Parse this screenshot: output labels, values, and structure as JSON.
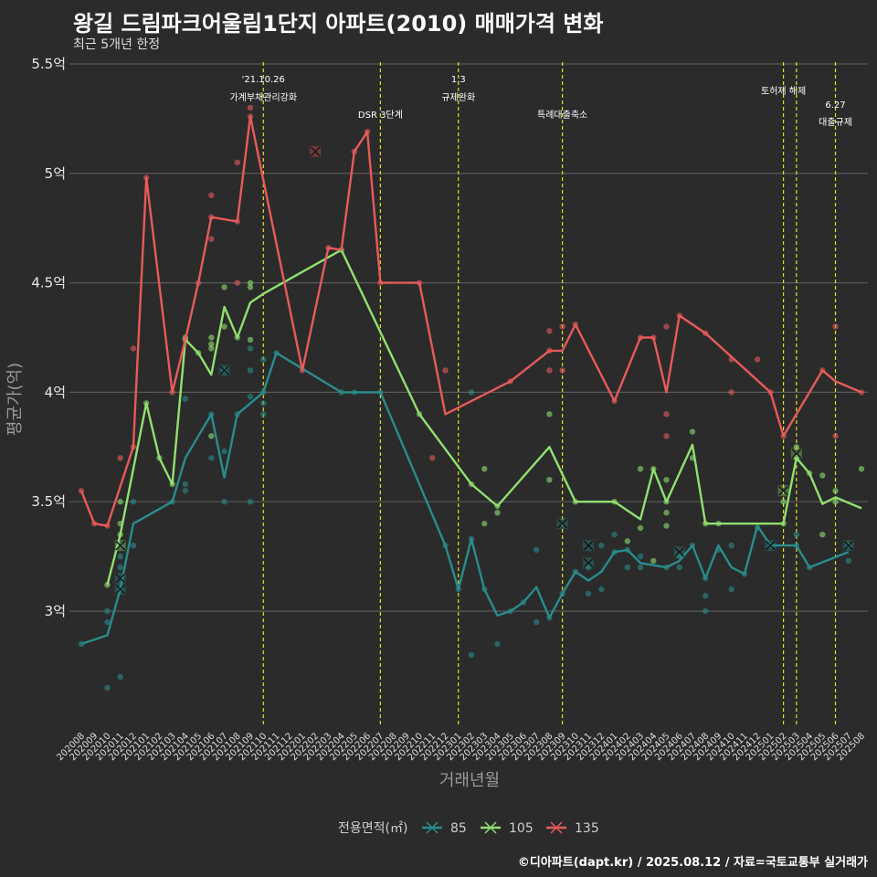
{
  "chart_data": {
    "type": "line",
    "title": "왕길 드림파크어울림1단지 아파트(2010) 매매가격 변화",
    "subtitle": "최근 5개년 한정",
    "xlabel": "거래년월",
    "ylabel": "평균가(억)",
    "legend_title": "전용면적(㎡)",
    "caption": "©디아파트(dapt.kr) / 2025.08.12 / 자료=국토교통부 실거래가",
    "ylim": [
      2.47,
      5.55
    ],
    "ytick_values": [
      3,
      3.5,
      4,
      4.5,
      5,
      5.5
    ],
    "ytick_labels": [
      "3억",
      "3.5억",
      "4억",
      "4.5억",
      "5억",
      "5.5억"
    ],
    "grid": true,
    "legend_position": "bottom",
    "x_months": [
      "202008",
      "202009",
      "202010",
      "202011",
      "202012",
      "202101",
      "202102",
      "202103",
      "202104",
      "202105",
      "202106",
      "202107",
      "202108",
      "202109",
      "202110",
      "202111",
      "202112",
      "202201",
      "202202",
      "202203",
      "202204",
      "202205",
      "202206",
      "202207",
      "202208",
      "202209",
      "202210",
      "202211",
      "202212",
      "202301",
      "202302",
      "202303",
      "202304",
      "202305",
      "202306",
      "202307",
      "202308",
      "202309",
      "202310",
      "202311",
      "202312",
      "202401",
      "202402",
      "202403",
      "202404",
      "202405",
      "202406",
      "202407",
      "202408",
      "202409",
      "202410",
      "202411",
      "202412",
      "202501",
      "202502",
      "202503",
      "202504",
      "202505",
      "202506",
      "202507",
      "202508"
    ],
    "events": [
      {
        "x": 14.0,
        "label1": "'21.10.26",
        "label2": "가계부채관리강화",
        "tier": "high"
      },
      {
        "x": 23.0,
        "label1": "",
        "label2": "DSR 3단계",
        "tier": "mid"
      },
      {
        "x": 29.0,
        "label1": "1.3",
        "label2": "규제완화",
        "tier": "high"
      },
      {
        "x": 37.0,
        "label1": "",
        "label2": "특례대출축소",
        "tier": "mid"
      },
      {
        "x": 54.0,
        "label1": "",
        "label2": "토허제 해제",
        "tier": "top"
      },
      {
        "x": 55.0,
        "label1": "",
        "label2": "",
        "tier": "none"
      },
      {
        "x": 58.0,
        "label1": "6.27",
        "label2": "대출규제",
        "tier": "low"
      }
    ],
    "series": [
      {
        "name": "85",
        "color": "#2a8c8c",
        "values": [
          [
            0,
            2.85
          ],
          [
            2,
            2.89
          ],
          [
            3,
            3.1
          ],
          [
            4,
            3.4
          ],
          [
            7,
            3.5
          ],
          [
            8,
            3.7
          ],
          [
            10,
            3.9
          ],
          [
            11,
            3.61
          ],
          [
            12,
            3.9
          ],
          [
            14,
            4.0
          ],
          [
            15,
            4.18
          ],
          [
            20,
            4.0
          ],
          [
            21,
            4.0
          ],
          [
            23,
            4.0
          ],
          [
            28,
            3.3
          ],
          [
            29,
            3.1
          ],
          [
            30,
            3.33
          ],
          [
            31,
            3.1
          ],
          [
            32,
            2.98
          ],
          [
            33,
            3.0
          ],
          [
            34,
            3.04
          ],
          [
            35,
            3.11
          ],
          [
            36,
            2.97
          ],
          [
            37,
            3.08
          ],
          [
            38,
            3.18
          ],
          [
            39,
            3.14
          ],
          [
            40,
            3.18
          ],
          [
            41,
            3.27
          ],
          [
            42,
            3.28
          ],
          [
            43,
            3.22
          ],
          [
            45,
            3.2
          ],
          [
            46,
            3.23
          ],
          [
            47,
            3.3
          ],
          [
            48,
            3.15
          ],
          [
            49,
            3.3
          ],
          [
            50,
            3.2
          ],
          [
            51,
            3.17
          ],
          [
            52,
            3.39
          ],
          [
            53,
            3.3
          ],
          [
            55,
            3.3
          ],
          [
            56,
            3.2
          ],
          [
            59,
            3.27
          ]
        ],
        "points": [
          [
            0,
            2.85
          ],
          [
            2,
            2.65
          ],
          [
            2,
            2.95
          ],
          [
            2,
            3.0
          ],
          [
            3,
            3.1
          ],
          [
            3,
            3.2
          ],
          [
            3,
            3.25
          ],
          [
            3,
            3.3
          ],
          [
            3,
            2.7
          ],
          [
            4,
            3.5
          ],
          [
            4,
            3.3
          ],
          [
            7,
            3.5
          ],
          [
            8,
            3.97
          ],
          [
            8,
            3.55
          ],
          [
            8,
            3.58
          ],
          [
            10,
            3.7
          ],
          [
            10,
            3.9
          ],
          [
            11,
            3.73
          ],
          [
            11,
            3.5
          ],
          [
            11,
            4.1
          ],
          [
            12,
            3.9
          ],
          [
            13,
            3.98
          ],
          [
            13,
            4.1
          ],
          [
            13,
            4.2
          ],
          [
            13,
            3.5
          ],
          [
            14,
            4.0
          ],
          [
            14,
            3.95
          ],
          [
            14,
            3.9
          ],
          [
            14,
            4.15
          ],
          [
            15,
            4.18
          ],
          [
            20,
            4.0
          ],
          [
            21,
            4.0
          ],
          [
            23,
            4.0
          ],
          [
            28,
            3.3
          ],
          [
            29,
            3.1
          ],
          [
            30,
            3.33
          ],
          [
            30,
            4.0
          ],
          [
            30,
            2.8
          ],
          [
            31,
            3.1
          ],
          [
            32,
            2.85
          ],
          [
            33,
            3.0
          ],
          [
            34,
            3.04
          ],
          [
            35,
            3.28
          ],
          [
            35,
            2.95
          ],
          [
            36,
            2.97
          ],
          [
            37,
            3.08
          ],
          [
            38,
            3.18
          ],
          [
            39,
            3.2
          ],
          [
            39,
            3.08
          ],
          [
            40,
            3.3
          ],
          [
            40,
            3.1
          ],
          [
            41,
            3.35
          ],
          [
            41,
            3.27
          ],
          [
            42,
            3.28
          ],
          [
            42,
            3.2
          ],
          [
            43,
            3.2
          ],
          [
            43,
            3.25
          ],
          [
            45,
            3.2
          ],
          [
            46,
            3.25
          ],
          [
            46,
            3.2
          ],
          [
            47,
            3.3
          ],
          [
            48,
            3.07
          ],
          [
            48,
            3.0
          ],
          [
            48,
            3.15
          ],
          [
            49,
            3.28
          ],
          [
            50,
            3.1
          ],
          [
            50,
            3.3
          ],
          [
            51,
            3.17
          ],
          [
            52,
            3.38
          ],
          [
            53,
            3.3
          ],
          [
            55,
            3.3
          ],
          [
            55,
            3.35
          ],
          [
            56,
            3.2
          ],
          [
            59,
            3.23
          ],
          [
            59,
            3.3
          ]
        ],
        "cancels": [
          [
            3,
            3.1
          ],
          [
            3,
            3.15
          ],
          [
            11,
            4.1
          ],
          [
            37,
            3.4
          ],
          [
            39,
            3.22
          ],
          [
            39,
            3.3
          ],
          [
            46,
            3.27
          ],
          [
            53,
            3.3
          ],
          [
            59,
            3.3
          ]
        ]
      },
      {
        "name": "105",
        "color": "#90e070",
        "values": [
          [
            2,
            3.12
          ],
          [
            3,
            3.35
          ],
          [
            5,
            3.95
          ],
          [
            6,
            3.7
          ],
          [
            7,
            3.58
          ],
          [
            8,
            4.24
          ],
          [
            9,
            4.18
          ],
          [
            10,
            4.08
          ],
          [
            11,
            4.39
          ],
          [
            12,
            4.25
          ],
          [
            13,
            4.41
          ],
          [
            14,
            4.45
          ],
          [
            20,
            4.65
          ],
          [
            26,
            3.9
          ],
          [
            30,
            3.58
          ],
          [
            32,
            3.48
          ],
          [
            36,
            3.75
          ],
          [
            38,
            3.5
          ],
          [
            41,
            3.5
          ],
          [
            43,
            3.42
          ],
          [
            44,
            3.65
          ],
          [
            45,
            3.5
          ],
          [
            47,
            3.76
          ],
          [
            48,
            3.4
          ],
          [
            54,
            3.4
          ],
          [
            55,
            3.7
          ],
          [
            56,
            3.63
          ],
          [
            57,
            3.49
          ],
          [
            58,
            3.52
          ],
          [
            60,
            3.47
          ]
        ],
        "points": [
          [
            2,
            3.12
          ],
          [
            3,
            3.35
          ],
          [
            3,
            3.5
          ],
          [
            3,
            3.4
          ],
          [
            5,
            3.95
          ],
          [
            6,
            3.7
          ],
          [
            7,
            3.58
          ],
          [
            8,
            4.24
          ],
          [
            8,
            4.25
          ],
          [
            9,
            4.18
          ],
          [
            10,
            4.2
          ],
          [
            10,
            4.22
          ],
          [
            10,
            4.25
          ],
          [
            10,
            3.8
          ],
          [
            11,
            4.48
          ],
          [
            11,
            4.3
          ],
          [
            12,
            4.25
          ],
          [
            13,
            4.5
          ],
          [
            13,
            4.48
          ],
          [
            13,
            4.24
          ],
          [
            20,
            4.65
          ],
          [
            26,
            3.9
          ],
          [
            30,
            3.58
          ],
          [
            31,
            3.65
          ],
          [
            31,
            3.4
          ],
          [
            32,
            3.48
          ],
          [
            32,
            3.45
          ],
          [
            36,
            3.6
          ],
          [
            36,
            3.9
          ],
          [
            38,
            3.5
          ],
          [
            41,
            3.5
          ],
          [
            42,
            3.32
          ],
          [
            43,
            3.38
          ],
          [
            43,
            3.65
          ],
          [
            44,
            3.65
          ],
          [
            44,
            3.23
          ],
          [
            45,
            3.5
          ],
          [
            45,
            3.6
          ],
          [
            45,
            3.45
          ],
          [
            45,
            3.39
          ],
          [
            47,
            3.82
          ],
          [
            47,
            3.7
          ],
          [
            48,
            3.4
          ],
          [
            49,
            3.4
          ],
          [
            54,
            3.4
          ],
          [
            54,
            3.5
          ],
          [
            55,
            3.75
          ],
          [
            55,
            3.7
          ],
          [
            56,
            3.63
          ],
          [
            57,
            3.35
          ],
          [
            57,
            3.62
          ],
          [
            58,
            3.55
          ],
          [
            58,
            3.5
          ],
          [
            60,
            3.65
          ]
        ],
        "cancels": [
          [
            3,
            3.3
          ],
          [
            54,
            3.55
          ],
          [
            55,
            3.72
          ]
        ]
      },
      {
        "name": "135",
        "color": "#e85a5a",
        "values": [
          [
            0,
            3.55
          ],
          [
            1,
            3.4
          ],
          [
            2,
            3.39
          ],
          [
            4,
            3.75
          ],
          [
            5,
            4.98
          ],
          [
            7,
            4.0
          ],
          [
            8,
            4.24
          ],
          [
            9,
            4.5
          ],
          [
            10,
            4.8
          ],
          [
            12,
            4.78
          ],
          [
            13,
            5.26
          ],
          [
            17,
            4.1
          ],
          [
            19,
            4.66
          ],
          [
            20,
            4.65
          ],
          [
            21,
            5.1
          ],
          [
            22,
            5.19
          ],
          [
            23,
            4.5
          ],
          [
            26,
            4.5
          ],
          [
            28,
            3.9
          ],
          [
            33,
            4.05
          ],
          [
            36,
            4.19
          ],
          [
            37,
            4.19
          ],
          [
            38,
            4.31
          ],
          [
            41,
            3.96
          ],
          [
            43,
            4.25
          ],
          [
            44,
            4.25
          ],
          [
            45,
            4.0
          ],
          [
            46,
            4.35
          ],
          [
            48,
            4.27
          ],
          [
            53,
            4.0
          ],
          [
            54,
            3.8
          ],
          [
            57,
            4.1
          ],
          [
            58,
            4.05
          ],
          [
            60,
            4.0
          ]
        ],
        "points": [
          [
            0,
            3.55
          ],
          [
            1,
            3.4
          ],
          [
            2,
            3.39
          ],
          [
            3,
            3.7
          ],
          [
            4,
            4.2
          ],
          [
            4,
            3.75
          ],
          [
            5,
            4.98
          ],
          [
            7,
            4.0
          ],
          [
            8,
            4.24
          ],
          [
            9,
            4.5
          ],
          [
            10,
            4.8
          ],
          [
            10,
            4.9
          ],
          [
            10,
            4.7
          ],
          [
            12,
            4.78
          ],
          [
            12,
            5.05
          ],
          [
            12,
            4.5
          ],
          [
            13,
            5.3
          ],
          [
            13,
            5.26
          ],
          [
            17,
            4.1
          ],
          [
            19,
            4.66
          ],
          [
            21,
            5.1
          ],
          [
            22,
            5.19
          ],
          [
            23,
            4.5
          ],
          [
            26,
            4.5
          ],
          [
            27,
            3.7
          ],
          [
            28,
            4.1
          ],
          [
            33,
            4.05
          ],
          [
            36,
            4.28
          ],
          [
            36,
            4.19
          ],
          [
            36,
            4.1
          ],
          [
            37,
            4.3
          ],
          [
            37,
            4.1
          ],
          [
            38,
            4.31
          ],
          [
            41,
            3.96
          ],
          [
            43,
            4.25
          ],
          [
            44,
            4.25
          ],
          [
            45,
            4.3
          ],
          [
            45,
            3.9
          ],
          [
            45,
            3.8
          ],
          [
            46,
            4.35
          ],
          [
            48,
            4.27
          ],
          [
            50,
            4.15
          ],
          [
            50,
            4.0
          ],
          [
            52,
            4.15
          ],
          [
            53,
            4.0
          ],
          [
            54,
            3.8
          ],
          [
            57,
            4.1
          ],
          [
            58,
            4.3
          ],
          [
            58,
            3.8
          ],
          [
            60,
            4.0
          ]
        ],
        "cancels": [
          [
            18,
            5.1
          ]
        ]
      }
    ]
  }
}
